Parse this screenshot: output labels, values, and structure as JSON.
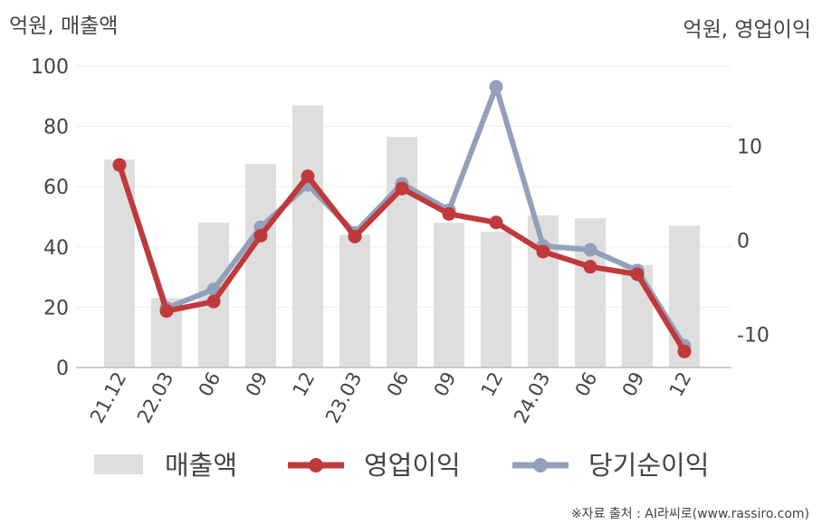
{
  "labels": {
    "left_axis_title": "억원, 매출액",
    "right_axis_title": "억원, 영업이익",
    "source": "※자료 출처 : AI라씨로(www.rassiro.com)"
  },
  "colors": {
    "revenue": "#dedede",
    "operating_profit": "#c0393b",
    "net_profit": "#93a0bb",
    "axis": "#bbbbbb",
    "grid": "#eeeeee",
    "text": "#444444"
  },
  "chart_data": {
    "type": "bar",
    "categories": [
      "21.12",
      "22.03",
      "06",
      "09",
      "12",
      "23.03",
      "06",
      "09",
      "12",
      "24.03",
      "06",
      "09",
      "12"
    ],
    "left_axis": {
      "ylim": [
        0,
        100
      ],
      "ticks": [
        0,
        20,
        40,
        60,
        80,
        100
      ]
    },
    "right_axis": {
      "ylim": [
        -13.5,
        18.5
      ],
      "ticks": [
        -10,
        0,
        10
      ]
    },
    "series": [
      {
        "name": "매출액",
        "type": "bar",
        "axis": "left",
        "values": [
          69,
          23,
          48,
          67.5,
          87,
          44,
          76.5,
          48,
          45,
          50.5,
          49.5,
          34,
          47
        ]
      },
      {
        "name": "영업이익",
        "type": "line",
        "axis": "right",
        "values": [
          8.0,
          -7.5,
          -6.5,
          0.5,
          6.8,
          0.4,
          5.5,
          2.8,
          1.9,
          -1.2,
          -2.8,
          -3.6,
          -11.8
        ]
      },
      {
        "name": "당기순이익",
        "type": "line",
        "axis": "right",
        "values": [
          8.0,
          -7.2,
          -5.2,
          1.4,
          5.9,
          0.8,
          6.0,
          3.2,
          16.3,
          -0.6,
          -1.0,
          -3.2,
          -11.2
        ]
      }
    ]
  }
}
